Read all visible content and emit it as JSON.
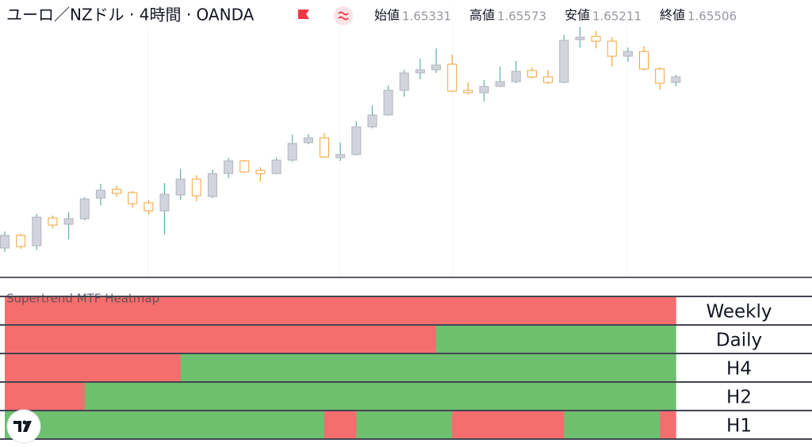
{
  "chart_data": [
    {
      "type": "candlestick",
      "title": "ユーロ／NZドル · 4時間 · OANDA",
      "ohlc_labels": [
        "始値",
        "高値",
        "安値",
        "終値"
      ],
      "candles": {
        "open": [
          1.60106,
          1.60506,
          1.60181,
          1.61056,
          1.60856,
          1.61031,
          1.61681,
          1.61956,
          1.61856,
          1.61531,
          1.61281,
          1.61781,
          1.62281,
          1.61731,
          1.62456,
          1.62856,
          1.62556,
          1.62456,
          1.62881,
          1.63431,
          1.63581,
          1.62956,
          1.63056,
          1.63931,
          1.64306,
          1.65081,
          1.65631,
          1.65731,
          1.65906,
          1.65081,
          1.65006,
          1.65206,
          1.65356,
          1.65706,
          1.65506,
          1.65331,
          1.66681,
          1.66781,
          1.66631,
          1.66156,
          1.66306,
          1.65756,
          1.65331
        ],
        "high": [
          1.60631,
          1.60556,
          1.61181,
          1.61131,
          1.61231,
          1.61706,
          1.62131,
          1.62081,
          1.61906,
          1.61631,
          1.62156,
          1.62606,
          1.62406,
          1.62581,
          1.62956,
          1.62881,
          1.62656,
          1.62956,
          1.63681,
          1.63706,
          1.63731,
          1.63431,
          1.64106,
          1.64606,
          1.65231,
          1.65731,
          1.66081,
          1.66406,
          1.66206,
          1.65331,
          1.65406,
          1.65831,
          1.66006,
          1.65806,
          1.65731,
          1.66831,
          1.67106,
          1.66956,
          1.66756,
          1.66431,
          1.66481,
          1.65806,
          1.65573
        ],
        "low": [
          1.59981,
          1.60081,
          1.60056,
          1.60731,
          1.60381,
          1.60981,
          1.61456,
          1.61731,
          1.61381,
          1.61156,
          1.60531,
          1.61631,
          1.61581,
          1.61681,
          1.62306,
          1.62481,
          1.62206,
          1.62431,
          1.62831,
          1.63381,
          1.62956,
          1.62856,
          1.63031,
          1.63881,
          1.64281,
          1.64881,
          1.65431,
          1.65631,
          1.65031,
          1.64956,
          1.64731,
          1.65181,
          1.65306,
          1.65456,
          1.65281,
          1.65306,
          1.66431,
          1.66406,
          1.65831,
          1.65981,
          1.65706,
          1.65106,
          1.65211
        ],
        "close": [
          1.60506,
          1.60156,
          1.61081,
          1.60831,
          1.61031,
          1.61656,
          1.61931,
          1.61831,
          1.61506,
          1.61281,
          1.61806,
          1.62281,
          1.61756,
          1.62456,
          1.62856,
          1.62506,
          1.62456,
          1.62881,
          1.63406,
          1.63581,
          1.62981,
          1.63056,
          1.63931,
          1.64306,
          1.65081,
          1.65631,
          1.65731,
          1.65881,
          1.65056,
          1.65006,
          1.65206,
          1.65356,
          1.65681,
          1.65506,
          1.65331,
          1.66656,
          1.66756,
          1.66631,
          1.66156,
          1.66306,
          1.65756,
          1.65306,
          1.65506
        ]
      },
      "ylim": [
        1.59681,
        1.67431
      ],
      "up_color": "#d1d4dc",
      "up_wick_color": "#5fb0a8",
      "down_color": "#f2a33a"
    },
    {
      "type": "heatmap",
      "title": "Supertrend MTF Heatmap",
      "bull_color": "#6ebf6e",
      "bear_color": "#f56e6e",
      "series": [
        {
          "name": "Weekly",
          "values": [
            -1,
            -1,
            -1,
            -1,
            -1,
            -1,
            -1,
            -1,
            -1,
            -1,
            -1,
            -1,
            -1,
            -1,
            -1,
            -1,
            -1,
            -1,
            -1,
            -1,
            -1,
            -1,
            -1,
            -1,
            -1,
            -1,
            -1,
            -1,
            -1,
            -1,
            -1,
            -1,
            -1,
            -1,
            -1,
            -1,
            -1,
            -1,
            -1,
            -1,
            -1,
            -1,
            -1
          ]
        },
        {
          "name": "Daily",
          "values": [
            -1,
            -1,
            -1,
            -1,
            -1,
            -1,
            -1,
            -1,
            -1,
            -1,
            -1,
            -1,
            -1,
            -1,
            -1,
            -1,
            -1,
            -1,
            -1,
            -1,
            -1,
            -1,
            -1,
            -1,
            -1,
            -1,
            -1,
            -1,
            1,
            1,
            1,
            1,
            1,
            1,
            1,
            1,
            1,
            1,
            1,
            1,
            1,
            1,
            1
          ]
        },
        {
          "name": "H4",
          "values": [
            -1,
            -1,
            -1,
            -1,
            -1,
            -1,
            -1,
            -1,
            -1,
            -1,
            -1,
            -1,
            1,
            1,
            1,
            1,
            1,
            1,
            1,
            1,
            1,
            1,
            1,
            1,
            1,
            1,
            1,
            1,
            1,
            1,
            1,
            1,
            1,
            1,
            1,
            1,
            1,
            1,
            1,
            1,
            1,
            1,
            1
          ]
        },
        {
          "name": "H2",
          "values": [
            -1,
            -1,
            -1,
            -1,
            -1,
            -1,
            1,
            1,
            1,
            1,
            1,
            1,
            1,
            1,
            1,
            1,
            1,
            1,
            1,
            1,
            1,
            1,
            1,
            1,
            1,
            1,
            1,
            1,
            1,
            1,
            1,
            1,
            1,
            1,
            1,
            1,
            1,
            1,
            1,
            1,
            1,
            1,
            1
          ]
        },
        {
          "name": "H1",
          "values": [
            1,
            1,
            1,
            1,
            1,
            1,
            1,
            1,
            1,
            1,
            1,
            1,
            1,
            1,
            1,
            1,
            1,
            1,
            1,
            1,
            1,
            -1,
            -1,
            1,
            1,
            1,
            1,
            1,
            1,
            -1,
            -1,
            -1,
            -1,
            -1,
            -1,
            -1,
            1,
            1,
            1,
            1,
            1,
            1,
            -1
          ]
        }
      ]
    }
  ]
}
